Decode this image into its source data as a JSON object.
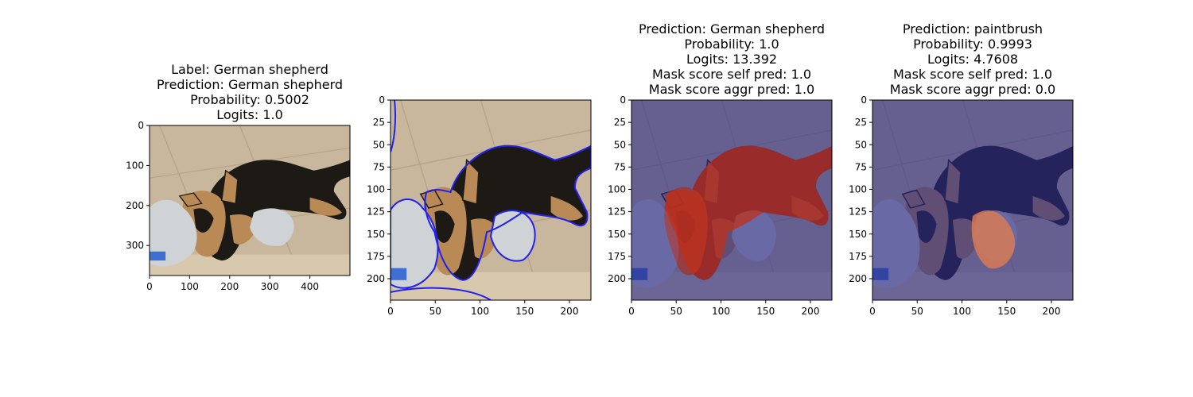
{
  "panels": [
    {
      "title_lines": [
        "Label: German shepherd",
        "Prediction: German shepherd",
        "Probability: 0.5002",
        "Logits: 1.0"
      ],
      "overlay": "none",
      "xlim": [
        0,
        500
      ],
      "ylim": [
        375,
        0
      ],
      "xticks": [
        0,
        100,
        200,
        300,
        400
      ],
      "yticks": [
        0,
        100,
        200,
        300
      ]
    },
    {
      "title_lines": [],
      "overlay": "blue-contour",
      "xlim": [
        0,
        224
      ],
      "ylim": [
        224,
        0
      ],
      "xticks": [
        0,
        50,
        100,
        150,
        200
      ],
      "yticks": [
        0,
        25,
        50,
        75,
        100,
        125,
        150,
        175,
        200
      ]
    },
    {
      "title_lines": [
        "Prediction: German shepherd",
        "Probability: 1.0",
        "Logits: 13.392",
        "Mask score self pred: 1.0",
        "Mask score aggr pred: 1.0"
      ],
      "overlay": "dog-mask",
      "xlim": [
        0,
        224
      ],
      "ylim": [
        224,
        0
      ],
      "xticks": [
        0,
        50,
        100,
        150,
        200
      ],
      "yticks": [
        0,
        25,
        50,
        75,
        100,
        125,
        150,
        175,
        200
      ]
    },
    {
      "title_lines": [
        "Prediction: paintbrush",
        "Probability: 0.9993",
        "Logits: 4.7608",
        "Mask score self pred: 1.0",
        "Mask score aggr pred: 0.0"
      ],
      "overlay": "toy-mask",
      "xlim": [
        0,
        224
      ],
      "ylim": [
        224,
        0
      ],
      "xticks": [
        0,
        50,
        100,
        150,
        200
      ],
      "yticks": [
        0,
        25,
        50,
        75,
        100,
        125,
        150,
        175,
        200
      ]
    }
  ],
  "colors": {
    "floor": "#c8b79d",
    "dog_black": "#1d1a16",
    "dog_tan": "#b98a55",
    "toy": "#cfd3d6",
    "contour": "#2222ee",
    "mask_dim": "#2a2a88",
    "mask_hot": "#c0301a"
  }
}
